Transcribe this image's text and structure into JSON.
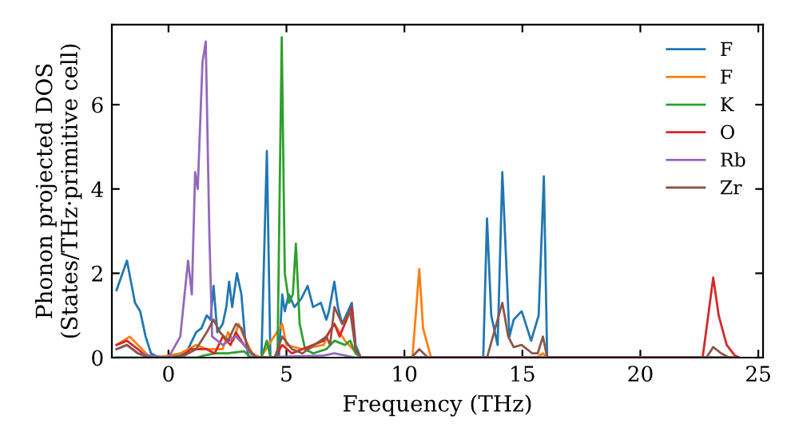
{
  "chart_data": {
    "type": "line",
    "xlabel": "Frequency (THz)",
    "ylabel": "Phonon projected DOS\n(States/THz·primitive cell)",
    "xlim": [
      -2.4,
      25.2
    ],
    "ylim": [
      0,
      7.9
    ],
    "xticks": [
      0,
      5,
      10,
      15,
      20,
      25
    ],
    "yticks": [
      0,
      2,
      4,
      6
    ],
    "grid": false,
    "legend": "top right",
    "marker": "none",
    "line_style": "solid",
    "series": [
      {
        "name": "F",
        "color": "#1f77b4",
        "x": [
          -2.2,
          -1.76,
          -1.42,
          -1.2,
          -0.97,
          -0.74,
          -0.4,
          0.5,
          0.83,
          1.17,
          1.4,
          1.62,
          1.78,
          1.91,
          2.07,
          2.3,
          2.45,
          2.57,
          2.7,
          2.9,
          3.09,
          3.24,
          3.4,
          3.94,
          4.17,
          4.32,
          4.68,
          4.82,
          4.93,
          5.1,
          5.34,
          5.63,
          5.9,
          6.13,
          6.46,
          6.69,
          6.8,
          7.03,
          7.18,
          7.36,
          7.77,
          7.93,
          8.15,
          13.34,
          13.5,
          13.68,
          13.95,
          14.15,
          14.45,
          14.63,
          14.97,
          15.37,
          15.69,
          15.91,
          16.05,
          24.0
        ],
        "values": [
          1.6,
          2.3,
          1.3,
          1.1,
          0.5,
          0.1,
          0,
          0.05,
          0.2,
          0.6,
          0.7,
          1.0,
          0.9,
          1.7,
          0.6,
          0.8,
          1.2,
          1.8,
          1.2,
          2.0,
          1.5,
          0.5,
          0,
          0,
          4.9,
          0,
          0,
          1.5,
          1.1,
          1.5,
          1.2,
          1.4,
          1.7,
          1.2,
          1.3,
          0.9,
          1.1,
          1.8,
          1.2,
          0.8,
          1.3,
          0.3,
          0,
          0,
          3.3,
          1.0,
          0.3,
          4.4,
          0.5,
          0.9,
          1.1,
          0.4,
          1.0,
          4.3,
          0,
          0
        ]
      },
      {
        "name": "F",
        "color": "#ff7f0e",
        "x": [
          -2.2,
          -1.64,
          -1.3,
          -0.86,
          -0.5,
          0.5,
          1.17,
          1.62,
          2.3,
          2.52,
          2.75,
          2.97,
          3.2,
          3.54,
          3.9,
          4.82,
          5.0,
          5.63,
          6.58,
          6.8,
          7.03,
          7.48,
          7.82,
          8.15,
          10.34,
          10.63,
          10.79,
          11.13,
          15.6,
          15.87,
          16.05,
          24.0
        ],
        "values": [
          0.3,
          0.5,
          0.3,
          0.05,
          0,
          0.1,
          0.3,
          0.2,
          0.2,
          0.6,
          0.4,
          0.8,
          0.5,
          0.1,
          0,
          0.8,
          0.3,
          0.2,
          0.3,
          0.6,
          0.8,
          0.4,
          0.2,
          0,
          0,
          2.1,
          0.7,
          0,
          0,
          0.1,
          0,
          0
        ]
      },
      {
        "name": "K",
        "color": "#2ca02c",
        "x": [
          -2.2,
          1.2,
          1.5,
          2.0,
          2.5,
          3.2,
          3.5,
          3.94,
          4.17,
          4.32,
          4.62,
          4.8,
          4.93,
          5.11,
          5.27,
          5.4,
          5.56,
          5.79,
          6.13,
          6.69,
          7.03,
          7.48,
          7.7,
          7.93,
          8.15,
          24.0
        ],
        "values": [
          0,
          0,
          0.05,
          0.1,
          0.1,
          0.15,
          0,
          0,
          0.4,
          0,
          0,
          7.6,
          2.0,
          1.3,
          1.5,
          2.7,
          0.8,
          0.2,
          0.1,
          0.2,
          0.4,
          0.3,
          0.4,
          0.1,
          0,
          0
        ]
      },
      {
        "name": "O",
        "color": "#d62728",
        "x": [
          -2.2,
          -1.76,
          -1.3,
          -0.86,
          0.5,
          0.95,
          1.62,
          1.96,
          2.3,
          2.63,
          2.86,
          3.2,
          3.65,
          4.5,
          4.82,
          5.23,
          6.58,
          7.03,
          7.25,
          7.77,
          7.93,
          8.15,
          22.64,
          23.09,
          23.32,
          23.66,
          24.0,
          24.2
        ],
        "values": [
          0.3,
          0.4,
          0.2,
          0,
          0,
          0.2,
          0.2,
          0.1,
          0.5,
          0.3,
          0.6,
          0.3,
          0,
          0,
          0.3,
          0.1,
          0.4,
          0.8,
          0.5,
          1.2,
          0.2,
          0,
          0,
          1.9,
          1.0,
          0.3,
          0.05,
          0
        ]
      },
      {
        "name": "Rb",
        "color": "#9467bd",
        "x": [
          -2.2,
          -1.76,
          -1.3,
          -0.8,
          0,
          0.5,
          0.72,
          0.83,
          0.99,
          1.13,
          1.24,
          1.44,
          1.58,
          1.73,
          1.85,
          2.3,
          2.86,
          3.2,
          3.65,
          6.58,
          7.03,
          7.93,
          24.0
        ],
        "values": [
          0.2,
          0.3,
          0.1,
          0.05,
          0,
          0.5,
          1.7,
          2.3,
          1.5,
          4.4,
          4.0,
          7.0,
          7.5,
          3.0,
          0.5,
          0.3,
          0.5,
          0.3,
          0,
          0.05,
          0.1,
          0,
          0
        ]
      },
      {
        "name": "Zr",
        "color": "#8c564b",
        "x": [
          -2.2,
          -1.76,
          -1.3,
          -0.8,
          0.5,
          1.17,
          1.62,
          1.91,
          2.18,
          2.52,
          2.86,
          3.09,
          3.4,
          3.72,
          4.5,
          4.82,
          5.23,
          5.68,
          6.69,
          6.85,
          7.03,
          7.36,
          7.7,
          7.93,
          8.15,
          10.3,
          10.63,
          11.0,
          13.5,
          14.15,
          14.4,
          14.63,
          14.97,
          15.42,
          15.65,
          15.87,
          16.05,
          22.8,
          23.09,
          23.43,
          23.77,
          24.0
        ],
        "values": [
          0.2,
          0.3,
          0.1,
          0,
          0,
          0.2,
          0.6,
          0.9,
          0.6,
          0.4,
          0.8,
          0.7,
          0.2,
          0,
          0,
          0.5,
          0.2,
          0.1,
          0.5,
          0.3,
          1.2,
          0.8,
          1.1,
          0.2,
          0,
          0,
          0.2,
          0,
          0,
          1.3,
          0.5,
          0.25,
          0.3,
          0.1,
          0.1,
          0.5,
          0,
          0,
          0.25,
          0.1,
          0,
          0
        ]
      }
    ]
  }
}
